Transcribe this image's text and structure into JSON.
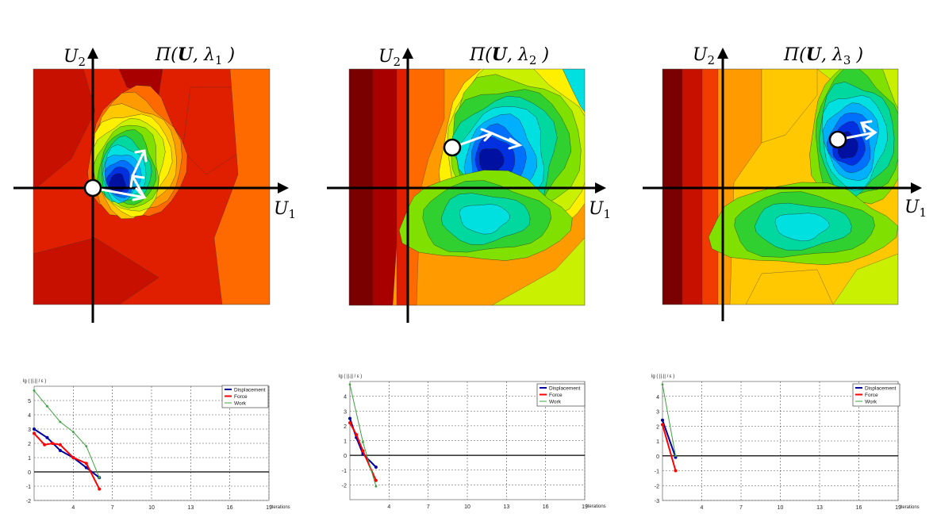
{
  "diagrams": [
    {
      "id": "d1",
      "u2_label": "U",
      "u2_sub": "2",
      "u1_label": "U",
      "u1_sub": "1",
      "title_pre": "Π(",
      "title_bold": "U",
      "title_mid": ", λ",
      "title_sub": "1",
      "title_post": " )",
      "palette": [
        "#7a0000",
        "#a80000",
        "#c81000",
        "#e01e00",
        "#f03c00",
        "#ff6a00",
        "#ff9a00",
        "#ffc800",
        "#fff000",
        "#c8f000",
        "#80e000",
        "#30d030",
        "#00d8a0",
        "#00e0e0",
        "#00b0ff",
        "#0070ff",
        "#0030e0",
        "#0010a0"
      ],
      "background_level": 3
    },
    {
      "id": "d2",
      "u2_label": "U",
      "u2_sub": "2",
      "u1_label": "U",
      "u1_sub": "1",
      "title_pre": "Π(",
      "title_bold": "U",
      "title_mid": ", λ",
      "title_sub": "2",
      "title_post": " )",
      "palette": [
        "#7a0000",
        "#a80000",
        "#c81000",
        "#e01e00",
        "#f03c00",
        "#ff6a00",
        "#ff9a00",
        "#ffc800",
        "#fff000",
        "#c8f000",
        "#80e000",
        "#30d030",
        "#00d8a0",
        "#00e0e0",
        "#00b0ff",
        "#0070ff",
        "#0030e0",
        "#0010a0"
      ],
      "background_level": 6
    },
    {
      "id": "d3",
      "u2_label": "U",
      "u2_sub": "2",
      "u1_label": "U",
      "u1_sub": "1",
      "title_pre": "Π(",
      "title_bold": "U",
      "title_mid": ", λ",
      "title_sub": "3",
      "title_post": " )",
      "palette": [
        "#7a0000",
        "#a80000",
        "#c81000",
        "#e01e00",
        "#f03c00",
        "#ff6a00",
        "#ff9a00",
        "#ffc800",
        "#fff000",
        "#c8f000",
        "#80e000",
        "#30d030",
        "#00d8a0",
        "#00e0e0",
        "#00b0ff",
        "#0070ff",
        "#0030e0",
        "#0010a0"
      ],
      "background_level": 7
    }
  ],
  "chart_data": [
    {
      "type": "line",
      "ylabel": "lg ( ||.|| / ε )",
      "xlabel": "Iterations",
      "xlim": [
        1,
        19
      ],
      "ylim": [
        -2,
        6
      ],
      "xticks": [
        4,
        7,
        10,
        13,
        16,
        19
      ],
      "yticks": [
        -2,
        -1,
        0,
        1,
        2,
        3,
        4,
        5
      ],
      "legend": "top-right",
      "series": [
        {
          "name": "Displacement",
          "color": "#0000a0",
          "x": [
            1,
            2,
            3,
            4,
            5,
            6
          ],
          "y": [
            3.0,
            2.4,
            1.5,
            1.0,
            0.3,
            -0.4
          ]
        },
        {
          "name": "Force",
          "color": "#ff0000",
          "x": [
            1,
            1.8,
            2.4,
            3,
            4,
            5,
            6
          ],
          "y": [
            2.7,
            1.9,
            2.0,
            1.9,
            1.0,
            0.6,
            -1.2
          ]
        },
        {
          "name": "Work",
          "color": "#40a040",
          "x": [
            1,
            2,
            3,
            4,
            5,
            6
          ],
          "y": [
            5.7,
            4.6,
            3.5,
            2.8,
            1.8,
            -0.4
          ]
        }
      ]
    },
    {
      "type": "line",
      "ylabel": "lg ( ||.|| / ε )",
      "xlabel": "Iterations",
      "xlim": [
        1,
        19
      ],
      "ylim": [
        -3,
        5
      ],
      "xticks": [
        4,
        7,
        10,
        13,
        16,
        19
      ],
      "yticks": [
        -2,
        -1,
        0,
        1,
        2,
        3,
        4
      ],
      "legend": "top-right",
      "series": [
        {
          "name": "Displacement",
          "color": "#0000a0",
          "x": [
            1,
            1.5,
            2,
            3
          ],
          "y": [
            2.5,
            1.2,
            0.1,
            -0.8
          ]
        },
        {
          "name": "Force",
          "color": "#ff0000",
          "x": [
            1,
            1.5,
            2,
            3
          ],
          "y": [
            2.2,
            1.4,
            0.3,
            -1.7
          ]
        },
        {
          "name": "Work",
          "color": "#40a040",
          "x": [
            1,
            2,
            3
          ],
          "y": [
            4.8,
            0.9,
            -2.1
          ]
        }
      ]
    },
    {
      "type": "line",
      "ylabel": "lg ( ||.|| / ε )",
      "xlabel": "Iterations",
      "xlim": [
        1,
        19
      ],
      "ylim": [
        -3,
        5
      ],
      "xticks": [
        4,
        7,
        10,
        13,
        16,
        19
      ],
      "yticks": [
        -3,
        -2,
        -1,
        0,
        1,
        2,
        3,
        4
      ],
      "legend": "top-right",
      "series": [
        {
          "name": "Displacement",
          "color": "#0000a0",
          "x": [
            1,
            2
          ],
          "y": [
            2.4,
            -0.1
          ]
        },
        {
          "name": "Force",
          "color": "#ff0000",
          "x": [
            1,
            2
          ],
          "y": [
            2.1,
            -1.0
          ]
        },
        {
          "name": "Work",
          "color": "#40a040",
          "x": [
            1,
            2
          ],
          "y": [
            4.8,
            0.0
          ]
        }
      ]
    }
  ]
}
